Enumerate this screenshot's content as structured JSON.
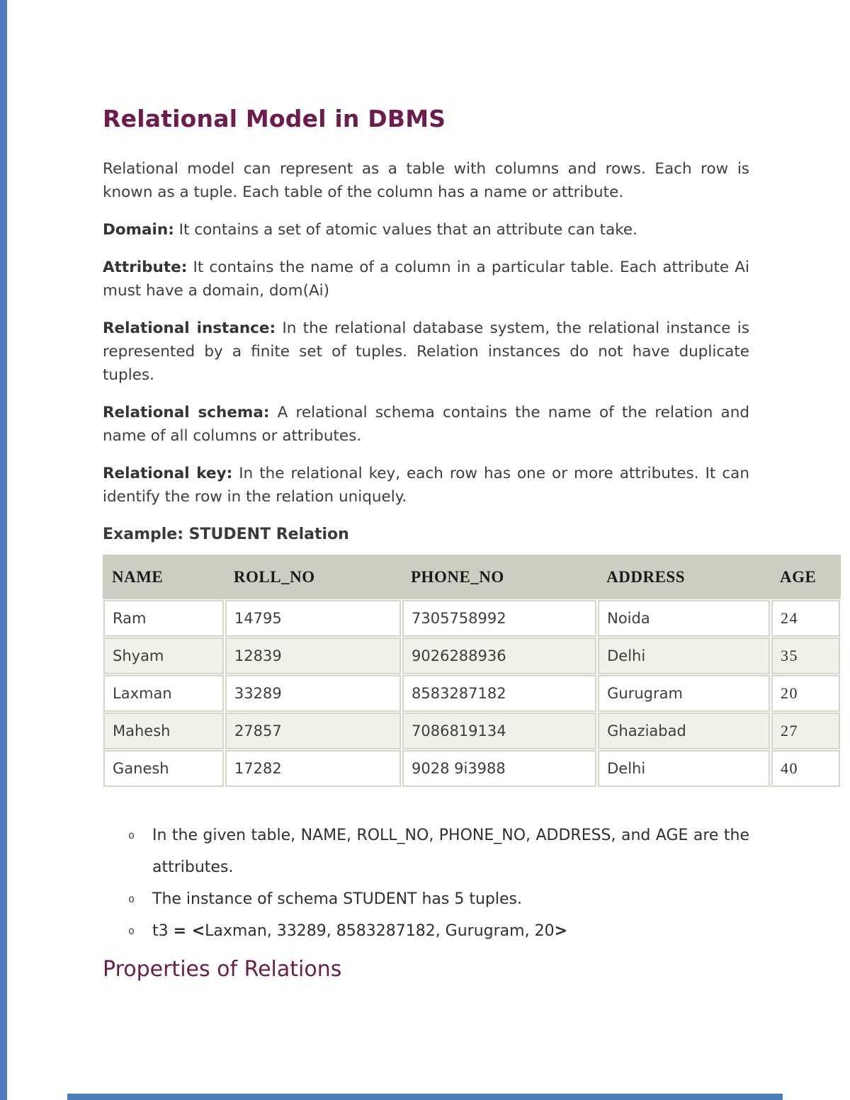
{
  "accents": {
    "blue": "#4d7dbe"
  },
  "doc": {
    "title": "Relational Model in DBMS",
    "intro": "Relational model can represent as a table with columns and rows. Each row is known as a tuple. Each table of the column has a name or attribute.",
    "definitions": [
      {
        "term": "Domain:",
        "text": " It contains a set of atomic values that an attribute can take."
      },
      {
        "term": "Attribute:",
        "text": " It contains the name of a column in a particular table. Each attribute Ai must have a domain, dom(Ai)"
      },
      {
        "term": "Relational instance:",
        "text": " In the relational database system, the relational instance is represented by a finite set of tuples. Relation instances do not have duplicate tuples."
      },
      {
        "term": "Relational schema:",
        "text": " A relational schema contains the name of the relation and name of all columns or attributes."
      },
      {
        "term": "Relational key:",
        "text": " In the relational key, each row has one or more attributes. It can identify the row in the relation uniquely."
      }
    ],
    "example_label": "Example: STUDENT Relation",
    "section2_title": "Properties of Relations"
  },
  "table": {
    "headers": [
      "NAME",
      "ROLL_NO",
      "PHONE_NO",
      "ADDRESS",
      "AGE"
    ],
    "rows": [
      [
        "Ram",
        "14795",
        "7305758992",
        "Noida",
        "24"
      ],
      [
        "Shyam",
        "12839",
        "9026288936",
        "Delhi",
        "35"
      ],
      [
        "Laxman",
        "33289",
        "8583287182",
        "Gurugram",
        "20"
      ],
      [
        "Mahesh",
        "27857",
        "7086819134",
        "Ghaziabad",
        "27"
      ],
      [
        "Ganesh",
        "17282",
        "9028 9i3988",
        "Delhi",
        "40"
      ]
    ],
    "header_bg": "#cbcec0",
    "alt_row_bg": "#f0f1e9",
    "border_color": "#d5d7c9"
  },
  "bullets": {
    "marker": "o",
    "item1": "In the given table, NAME, ROLL_NO, PHONE_NO, ADDRESS, and AGE are the attributes.",
    "item2": "The instance of schema STUDENT has 5 tuples.",
    "item3_prefix": "t3 ",
    "item3_eq": "= <",
    "item3_body": "Laxman, 33289, 8583287182, Gurugram, 20",
    "item3_close": ">"
  }
}
